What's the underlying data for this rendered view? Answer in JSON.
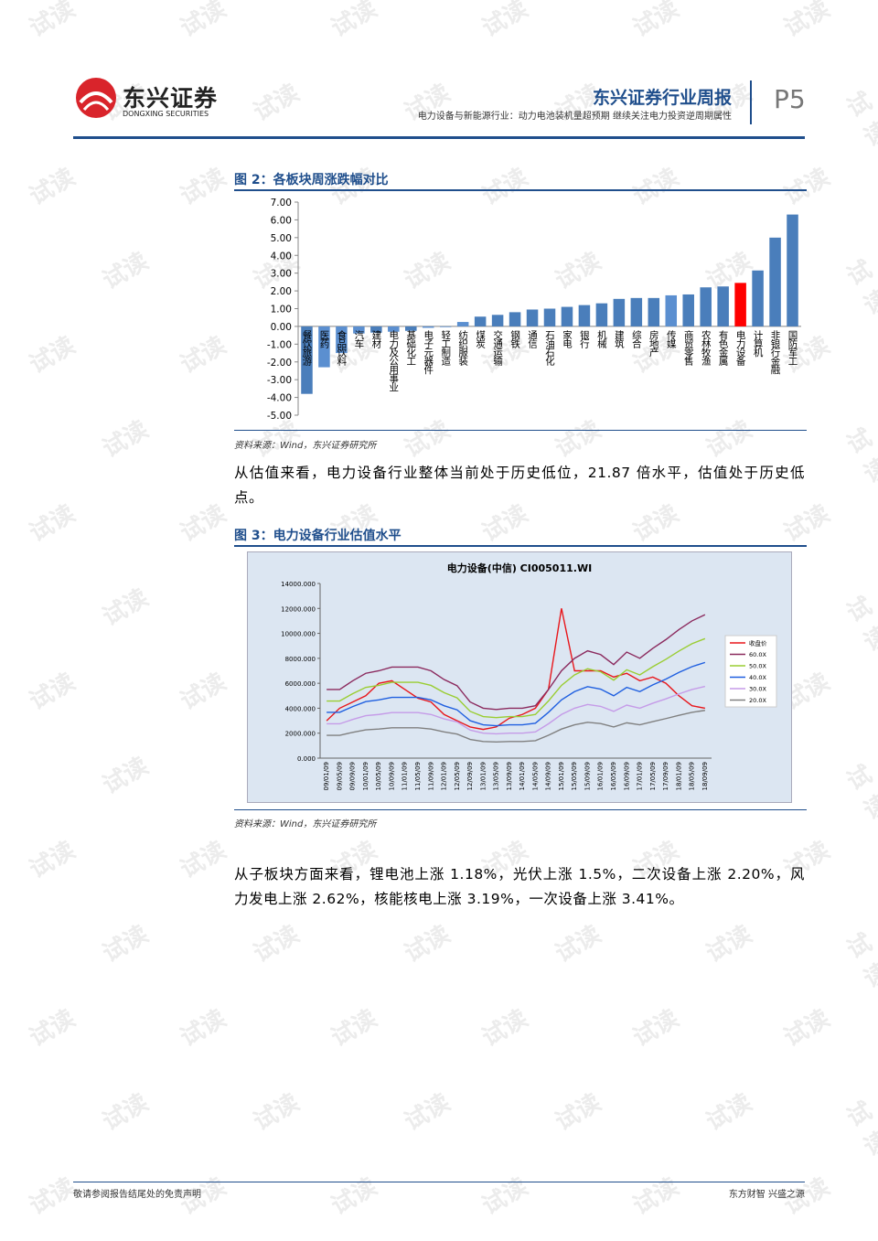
{
  "header": {
    "logo_cn": "东兴证券",
    "logo_en": "DONGXING SECURITIES",
    "title": "东兴证券行业周报",
    "subtitle": "电力设备与新能源行业：动力电池装机量超预期 继续关注电力投资逆周期属性",
    "page": "P5"
  },
  "watermark": "试读",
  "figure2": {
    "title": "图 2：各板块周涨跌幅对比",
    "source": "资料来源：Wind，东兴证券研究所"
  },
  "paragraph1": "从估值来看，电力设备行业整体当前处于历史低位，21.87 倍水平，估值处于历史低点。",
  "figure3": {
    "title": "图 3：电力设备行业估值水平",
    "source": "资料来源：Wind，东兴证券研究所"
  },
  "paragraph2": "从子板块方面来看，锂电池上涨 1.18%，光伏上涨 1.5%，二次设备上涨 2.20%，风力发电上涨 2.62%，核能核电上涨 3.19%，一次设备上涨 3.41%。",
  "footer": {
    "left": "敬请参阅报告结尾处的免责声明",
    "right": "东方财智 兴盛之源"
  },
  "chart_data": [
    {
      "type": "bar",
      "categories": [
        "餐饮旅游",
        "医药",
        "食品饮料",
        "汽车",
        "建材",
        "电力及公用事业",
        "基础化工",
        "电子元器件",
        "轻工制造",
        "纺织服装",
        "煤炭",
        "交通运输",
        "钢铁",
        "通信",
        "石油石化",
        "家电",
        "银行",
        "机械",
        "建筑",
        "综合",
        "房地产",
        "传媒",
        "商贸零售",
        "农林牧渔",
        "有色金属",
        "电力设备",
        "计算机",
        "非银行金融",
        "国防军工"
      ],
      "values": [
        -3.8,
        -2.3,
        -1.5,
        -0.4,
        -0.35,
        -0.3,
        -0.25,
        -0.08,
        -0.04,
        0.25,
        0.55,
        0.65,
        0.8,
        0.95,
        1.0,
        1.1,
        1.2,
        1.3,
        1.55,
        1.6,
        1.6,
        1.75,
        1.8,
        2.2,
        2.25,
        2.45,
        3.15,
        5.0,
        6.3
      ],
      "colors": [
        "#4a7ebb",
        "#5b8fd0",
        "#5b8fd0",
        "#5b8fd0",
        "#4a7ebb",
        "#5b8fd0",
        "#4a7ebb",
        "#5b8fd0",
        "#5b8fd0",
        "#5b8fd0",
        "#4a7ebb",
        "#4a7ebb",
        "#4a7ebb",
        "#4a7ebb",
        "#4a7ebb",
        "#4a7ebb",
        "#4a7ebb",
        "#4a7ebb",
        "#4a7ebb",
        "#4a7ebb",
        "#4a7ebb",
        "#5b8fd0",
        "#4a7ebb",
        "#4a7ebb",
        "#4a7ebb",
        "#ff0000",
        "#4a7ebb",
        "#4a7ebb",
        "#4a7ebb"
      ],
      "ylim": [
        -5,
        7
      ],
      "yticks": [
        {
          "value": 7,
          "label": "7.00"
        },
        {
          "value": 6,
          "label": "6.00"
        },
        {
          "value": 5,
          "label": "5.00"
        },
        {
          "value": 4,
          "label": "4.00"
        },
        {
          "value": 3,
          "label": "3.00"
        },
        {
          "value": 2,
          "label": "2.00"
        },
        {
          "value": 1,
          "label": "1.00"
        },
        {
          "value": 0,
          "label": "0.00"
        },
        {
          "value": -1,
          "label": "-1.00"
        },
        {
          "value": -2,
          "label": "-2.00"
        },
        {
          "value": -3,
          "label": "-3.00"
        },
        {
          "value": -4,
          "label": "-4.00"
        },
        {
          "value": -5,
          "label": "-5.00"
        }
      ]
    },
    {
      "type": "line",
      "title": "电力设备(中信) CI005011.WI",
      "categories": [
        "09/01/09",
        "09/05/09",
        "09/09/09",
        "10/01/09",
        "10/05/09",
        "10/09/09",
        "11/01/09",
        "11/05/09",
        "11/09/09",
        "12/01/09",
        "12/05/09",
        "12/09/09",
        "13/01/09",
        "13/05/09",
        "13/09/09",
        "14/01/09",
        "14/05/09",
        "14/09/09",
        "15/01/09",
        "15/05/09",
        "15/09/09",
        "16/01/09",
        "16/05/09",
        "16/09/09",
        "17/01/09",
        "17/05/09",
        "17/09/09",
        "18/01/09",
        "18/05/09",
        "18/09/09"
      ],
      "ylim": [
        0,
        14000
      ],
      "yticks": [
        {
          "value": 0,
          "label": "0.000"
        },
        {
          "value": 2000,
          "label": "2000.000"
        },
        {
          "value": 4000,
          "label": "4000.000"
        },
        {
          "value": 6000,
          "label": "6000.000"
        },
        {
          "value": 8000,
          "label": "8000.000"
        },
        {
          "value": 10000,
          "label": "10000.000"
        },
        {
          "value": 12000,
          "label": "12000.000"
        },
        {
          "value": 14000,
          "label": "14000.000"
        }
      ],
      "series": [
        {
          "name": "收盘价",
          "color": "#e8161b",
          "values": [
            3000,
            4000,
            4500,
            5000,
            6000,
            6200,
            5500,
            4800,
            4500,
            3500,
            3000,
            2500,
            2300,
            2500,
            3200,
            3500,
            4000,
            5500,
            12000,
            7000,
            7000,
            7000,
            6500,
            6800,
            6200,
            6500,
            6000,
            5000,
            4200,
            4000
          ]
        },
        {
          "name": "60.0X",
          "color": "#8b2a5e",
          "values": [
            5500,
            5500,
            6200,
            6800,
            7000,
            7300,
            7300,
            7300,
            7000,
            6300,
            5800,
            4500,
            4000,
            3900,
            4000,
            4000,
            4200,
            5500,
            7000,
            8000,
            8600,
            8300,
            7500,
            8500,
            8000,
            8800,
            9500,
            10300,
            11000,
            11500
          ]
        },
        {
          "name": "50.0X",
          "color": "#9acd32",
          "values": [
            4580,
            4580,
            5170,
            5670,
            5830,
            6080,
            6080,
            6080,
            5830,
            5250,
            4830,
            3750,
            3330,
            3250,
            3330,
            3330,
            3500,
            4580,
            5830,
            6670,
            7170,
            6920,
            6250,
            7080,
            6670,
            7330,
            7920,
            8580,
            9170,
            9580
          ]
        },
        {
          "name": "40.0X",
          "color": "#1f5fe0",
          "values": [
            3670,
            3670,
            4130,
            4530,
            4670,
            4870,
            4870,
            4870,
            4670,
            4200,
            3870,
            3000,
            2670,
            2600,
            2670,
            2670,
            2800,
            3670,
            4670,
            5330,
            5730,
            5530,
            5000,
            5670,
            5330,
            5870,
            6330,
            6870,
            7330,
            7670
          ]
        },
        {
          "name": "30.0X",
          "color": "#c59be8",
          "values": [
            2750,
            2750,
            3100,
            3400,
            3500,
            3650,
            3650,
            3650,
            3500,
            3150,
            2900,
            2250,
            2000,
            1950,
            2000,
            2000,
            2100,
            2750,
            3500,
            4000,
            4300,
            4150,
            3750,
            4250,
            4000,
            4400,
            4750,
            5150,
            5500,
            5750
          ]
        },
        {
          "name": "20.0X",
          "color": "#808080",
          "values": [
            1830,
            1830,
            2070,
            2270,
            2330,
            2430,
            2430,
            2430,
            2330,
            2100,
            1930,
            1500,
            1330,
            1300,
            1330,
            1330,
            1400,
            1830,
            2330,
            2670,
            2870,
            2770,
            2500,
            2830,
            2670,
            2930,
            3170,
            3430,
            3670,
            3830
          ]
        }
      ]
    }
  ]
}
